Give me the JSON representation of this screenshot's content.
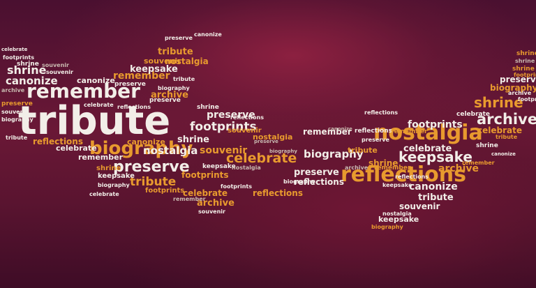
{
  "image": {
    "kind": "word cloud shaped like an airplane",
    "colors": {
      "background_dark": "#4a1030",
      "background_glow": "#8c2040",
      "word_white": "#f2eee8",
      "word_orange": "#e89a2e",
      "word_red": "#d75a45",
      "word_grey": "#c9b9b0"
    }
  },
  "words": {
    "tribute": "tribute",
    "remember": "remember",
    "biography": "biography",
    "preserve": "preserve",
    "nostalgia": "nostalgia",
    "reflections": "reflections",
    "keepsake": "keepsake",
    "archive": "archive",
    "shrine": "shrine",
    "celebrate": "celebrate",
    "footprints": "footprints",
    "souvenir": "souvenir",
    "canonize": "canonize"
  }
}
